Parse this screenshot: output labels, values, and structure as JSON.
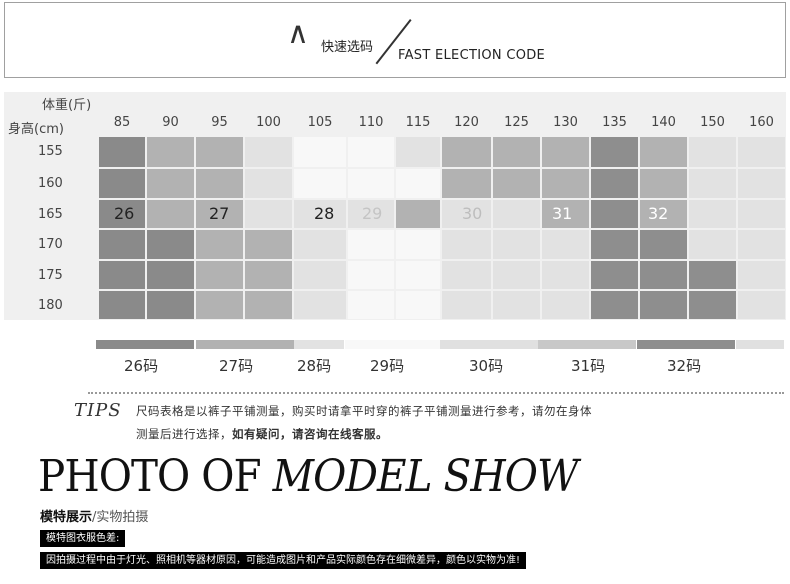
{
  "banner": {
    "mark": "∧",
    "title_cn": "快速选码",
    "title_en": "FAST ELECTION CODE"
  },
  "table": {
    "weight_header": "体重(斤)",
    "height_header": "身高(cm)",
    "weights": [
      "85",
      "90",
      "95",
      "100",
      "105",
      "110",
      "115",
      "120",
      "125",
      "130",
      "135",
      "140",
      "150",
      "160"
    ],
    "heights": [
      "155",
      "160",
      "165",
      "170",
      "175",
      "180"
    ],
    "sizes_in_row": [
      "26",
      "27",
      "28",
      "29",
      "30",
      "31",
      "32"
    ]
  },
  "legend": {
    "items": [
      "26码",
      "27码",
      "28码",
      "29码",
      "30码",
      "31码",
      "32码"
    ]
  },
  "tips": {
    "label": "TIPS",
    "line1": "尺码表格是以裤子平铺测量，购买时请拿平时穿的裤子平铺测量进行参考，请勿在身体",
    "line2_plain": "测量后进行选择，",
    "line2_bold": "如有疑问，请咨询在线客服。"
  },
  "model": {
    "title_upright": "PHOTO OF ",
    "title_italic": "MODEL SHOW",
    "subtitle_main": "模特展示",
    "subtitle_sep": "/",
    "subtitle_sub": "实物拍摄",
    "note_title": "模特图衣服色差:",
    "note_body": "因拍摄过程中由于灯光、照相机等器材原因，可能造成图片和产品实际颜色存在细微差异，颜色以实物为准!"
  },
  "colors": {
    "s26": "#8a8a8a",
    "s27": "#b2b2b2",
    "s28": "#e2e2e2",
    "s29": "#f8f8f8",
    "s30": "#e0e0e0",
    "s31": "#c8c8c8",
    "s32": "#8e8e8e"
  }
}
